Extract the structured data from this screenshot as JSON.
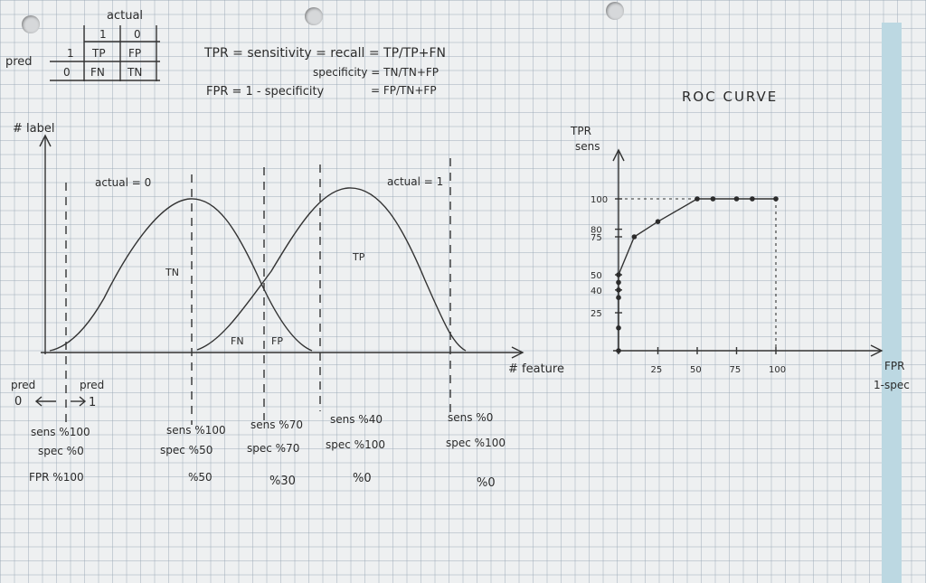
{
  "confusion_matrix": {
    "header": "actual",
    "row_header": "pred",
    "col_1": "1",
    "col_0": "0",
    "row_1": "1",
    "row_0": "0",
    "cell_tp": "TP",
    "cell_fp": "FP",
    "cell_fn": "FN",
    "cell_tn": "TN"
  },
  "formulas": {
    "tpr": "TPR = sensitivity = recall = TP/TP+FN",
    "specificity": "specificity = TN/TN+FP",
    "fpr": "FPR = 1 - specificity",
    "fpr_value": "= FP/TN+FP"
  },
  "distribution": {
    "ylabel": "# label",
    "xlabel": "# feature",
    "curve_left_label": "actual = 0",
    "curve_right_label": "actual = 1",
    "region_tn": "TN",
    "region_tp": "TP",
    "region_fn": "FN",
    "region_fp": "FP",
    "pred_left": "pred",
    "pred_left_value": "0",
    "pred_right": "pred",
    "pred_right_value": "1"
  },
  "thresholds": [
    {
      "sens": "sens %100",
      "spec": "spec %0",
      "fpr": "FPR %100"
    },
    {
      "sens": "sens %100",
      "spec": "spec %50",
      "fpr": "%50"
    },
    {
      "sens": "sens %70",
      "spec": "spec %70",
      "fpr": "%30"
    },
    {
      "sens": "sens %40",
      "spec": "spec %100",
      "fpr": "%0"
    },
    {
      "sens": "sens %0",
      "spec": "spec %100",
      "fpr": "%0"
    }
  ],
  "roc": {
    "title": "ROC CURVE",
    "ylabel_1": "TPR",
    "ylabel_2": "sens",
    "xlabel_1": "FPR",
    "xlabel_2": "1-spec",
    "yticks": [
      "100",
      "80",
      "75",
      "50",
      "40",
      "25"
    ],
    "xticks": [
      "25",
      "50",
      "75",
      "100"
    ]
  },
  "chart_data": {
    "type": "line",
    "title": "ROC CURVE",
    "xlabel": "FPR 1-spec",
    "ylabel": "TPR sens",
    "xlim": [
      0,
      100
    ],
    "ylim": [
      0,
      100
    ],
    "x_ticks": [
      25,
      50,
      75,
      100
    ],
    "y_ticks": [
      25,
      40,
      50,
      75,
      80,
      100
    ],
    "series": [
      {
        "x": [
          0,
          0,
          0,
          0,
          0,
          0,
          10,
          25,
          50,
          60,
          75,
          85,
          100
        ],
        "y": [
          0,
          15,
          35,
          40,
          45,
          50,
          75,
          85,
          100,
          100,
          100,
          100,
          100
        ]
      }
    ]
  }
}
